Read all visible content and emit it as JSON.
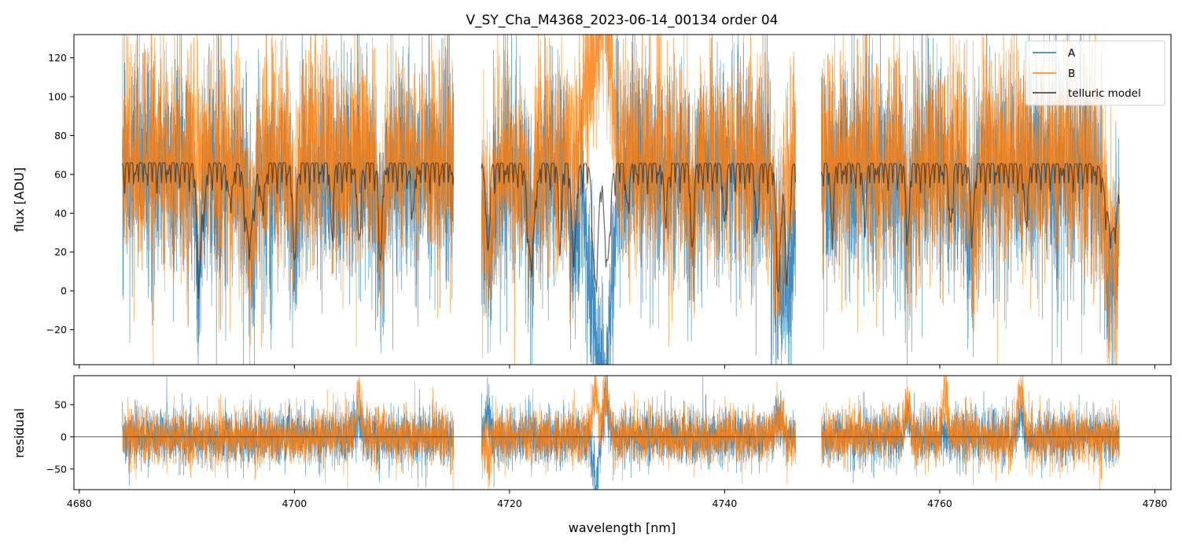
{
  "chart_data": [
    {
      "type": "line",
      "panel": "main",
      "title": "V_SY_Cha_M4368_2023-06-14_00134  order 04",
      "xlabel": "",
      "ylabel": "flux [ADU]",
      "xlim": [
        4679.5,
        4781.5
      ],
      "ylim": [
        -38,
        132
      ],
      "yticks": [
        -20,
        0,
        20,
        40,
        60,
        80,
        100,
        120
      ],
      "ytick_labels": [
        "−20",
        "0",
        "20",
        "40",
        "60",
        "80",
        "100",
        "120"
      ],
      "xticks": [
        4680,
        4700,
        4720,
        4740,
        4760,
        4780
      ],
      "grid": false,
      "legend_position": "top-right",
      "segments": [
        [
          4684.0,
          4714.8
        ],
        [
          4717.4,
          4746.6
        ],
        [
          4749.0,
          4776.7
        ]
      ],
      "series": [
        {
          "name": "A",
          "color": "#1f77b4",
          "role": "data",
          "level": 62,
          "noise": 26,
          "features": [
            [
              4691.1,
              55,
              0.25
            ],
            [
              4696.0,
              40,
              0.4
            ],
            [
              4700.0,
              40,
              0.3
            ],
            [
              4708.0,
              40,
              0.3
            ],
            [
              4718.0,
              45,
              0.4
            ],
            [
              4722.0,
              35,
              0.3
            ],
            [
              4726.0,
              40,
              0.4
            ],
            [
              4728.0,
              80,
              0.6
            ],
            [
              4729.0,
              90,
              0.5
            ],
            [
              4737.0,
              30,
              0.3
            ],
            [
              4745.0,
              55,
              0.5
            ],
            [
              4746.0,
              50,
              0.4
            ],
            [
              4757.0,
              35,
              0.3
            ],
            [
              4763.0,
              40,
              0.3
            ],
            [
              4776.0,
              55,
              0.6
            ]
          ]
        },
        {
          "name": "B",
          "color": "#ff7f0e",
          "role": "data",
          "level": 68,
          "noise": 27,
          "features": [
            [
              4696.0,
              45,
              0.4
            ],
            [
              4700.0,
              35,
              0.3
            ],
            [
              4708.0,
              40,
              0.3
            ],
            [
              4718.0,
              40,
              0.4
            ],
            [
              4722.0,
              30,
              0.3
            ],
            [
              4728.0,
              -50,
              0.8
            ],
            [
              4729.0,
              -60,
              0.5
            ],
            [
              4737.0,
              30,
              0.3
            ],
            [
              4745.0,
              45,
              0.5
            ],
            [
              4757.0,
              30,
              0.3
            ],
            [
              4763.0,
              35,
              0.3
            ],
            [
              4776.0,
              55,
              0.6
            ]
          ]
        },
        {
          "name": "telluric model",
          "color": "#333333",
          "role": "model",
          "level": 66,
          "noise": 0,
          "features": [
            [
              4691.1,
              60,
              0.18
            ],
            [
              4691.6,
              25,
              0.15
            ],
            [
              4694.0,
              18,
              0.2
            ],
            [
              4695.8,
              40,
              0.35
            ],
            [
              4697.0,
              20,
              0.2
            ],
            [
              4700.0,
              50,
              0.15
            ],
            [
              4703.5,
              30,
              0.15
            ],
            [
              4706.0,
              40,
              0.15
            ],
            [
              4708.0,
              50,
              0.15
            ],
            [
              4711.0,
              25,
              0.15
            ],
            [
              4718.0,
              45,
              0.15
            ],
            [
              4722.0,
              50,
              0.3
            ],
            [
              4724.7,
              35,
              0.15
            ],
            [
              4726.0,
              45,
              0.2
            ],
            [
              4728.0,
              60,
              0.25
            ],
            [
              4729.1,
              50,
              0.25
            ],
            [
              4731.0,
              20,
              0.15
            ],
            [
              4734.5,
              25,
              0.15
            ],
            [
              4737.0,
              40,
              0.15
            ],
            [
              4740.0,
              25,
              0.15
            ],
            [
              4743.0,
              30,
              0.15
            ],
            [
              4745.0,
              60,
              0.2
            ],
            [
              4745.8,
              55,
              0.2
            ],
            [
              4750.0,
              30,
              0.15
            ],
            [
              4753.0,
              25,
              0.15
            ],
            [
              4757.0,
              35,
              0.15
            ],
            [
              4761.0,
              30,
              0.15
            ],
            [
              4763.0,
              35,
              0.15
            ],
            [
              4768.0,
              30,
              0.15
            ],
            [
              4776.0,
              35,
              0.5
            ]
          ]
        }
      ],
      "legend": [
        "A",
        "B",
        "telluric model"
      ]
    },
    {
      "type": "line",
      "panel": "residual",
      "title": "",
      "xlabel": "wavelength [nm]",
      "ylabel": "residual",
      "xlim": [
        4679.5,
        4781.5
      ],
      "ylim": [
        -82,
        95
      ],
      "yticks": [
        -50,
        0,
        50
      ],
      "ytick_labels": [
        "−50",
        "0",
        "50"
      ],
      "xticks": [
        4680,
        4700,
        4720,
        4740,
        4760,
        4780
      ],
      "xtick_labels": [
        "4680",
        "4700",
        "4720",
        "4740",
        "4760",
        "4780"
      ],
      "grid": false,
      "reference_line": 0,
      "segments": [
        [
          4684.0,
          4714.8
        ],
        [
          4717.4,
          4746.6
        ],
        [
          4749.0,
          4776.7
        ]
      ],
      "series": [
        {
          "name": "A",
          "color": "#1f77b4",
          "noise": 20,
          "spikes": [
            [
              4706.0,
              30
            ],
            [
              4718.0,
              35
            ],
            [
              4728.0,
              -70
            ],
            [
              4729.0,
              60
            ],
            [
              4745.0,
              35
            ],
            [
              4757.0,
              30
            ],
            [
              4767.5,
              40
            ]
          ]
        },
        {
          "name": "B",
          "color": "#ff7f0e",
          "noise": 21,
          "spikes": [
            [
              4706.0,
              60
            ],
            [
              4718.0,
              -35
            ],
            [
              4728.0,
              80
            ],
            [
              4729.0,
              70
            ],
            [
              4745.0,
              45
            ],
            [
              4757.0,
              45
            ],
            [
              4760.5,
              70
            ],
            [
              4767.5,
              70
            ]
          ]
        }
      ]
    }
  ]
}
